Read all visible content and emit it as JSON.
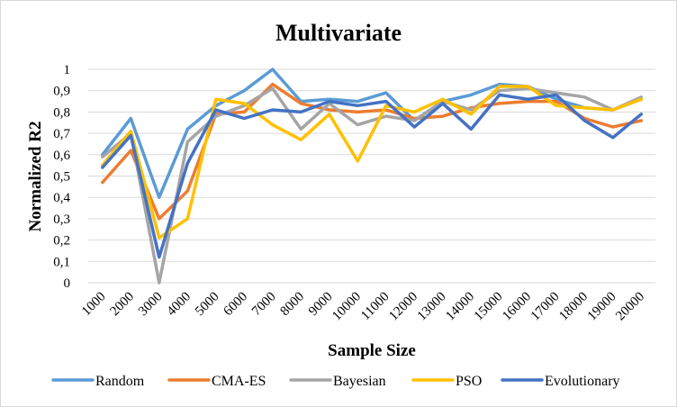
{
  "chart_data": {
    "type": "line",
    "title": "Multivariate",
    "xlabel": "Sample Size",
    "ylabel": "Normalized R2",
    "ylim": [
      0,
      1
    ],
    "yticks": [
      "0",
      "0,1",
      "0,2",
      "0,3",
      "0,4",
      "0,5",
      "0,6",
      "0,7",
      "0,8",
      "0,9",
      "1"
    ],
    "categories": [
      "1000",
      "2000",
      "3000",
      "4000",
      "5000",
      "6000",
      "7000",
      "8000",
      "9000",
      "10000",
      "11000",
      "12000",
      "13000",
      "14000",
      "15000",
      "16000",
      "17000",
      "18000",
      "19000",
      "20000"
    ],
    "grid": true,
    "legend_position": "bottom",
    "series": [
      {
        "name": "Random",
        "color": "#5B9BD5",
        "values": [
          0.6,
          0.77,
          0.4,
          0.72,
          0.83,
          0.9,
          1.0,
          0.85,
          0.86,
          0.85,
          0.89,
          0.76,
          0.85,
          0.88,
          0.93,
          0.92,
          0.86,
          0.82,
          0.81,
          0.86
        ]
      },
      {
        "name": "CMA-ES",
        "color": "#ED7D31",
        "values": [
          0.47,
          0.62,
          0.3,
          0.43,
          0.79,
          0.8,
          0.93,
          0.84,
          0.81,
          0.8,
          0.81,
          0.77,
          0.78,
          0.82,
          0.84,
          0.85,
          0.85,
          0.77,
          0.73,
          0.76
        ]
      },
      {
        "name": "Bayesian",
        "color": "#A5A5A5",
        "values": [
          0.59,
          0.7,
          0.0,
          0.66,
          0.78,
          0.83,
          0.91,
          0.72,
          0.84,
          0.74,
          0.78,
          0.76,
          0.85,
          0.81,
          0.9,
          0.91,
          0.89,
          0.87,
          0.81,
          0.87
        ]
      },
      {
        "name": "PSO",
        "color": "#FFC000",
        "values": [
          0.55,
          0.71,
          0.21,
          0.3,
          0.86,
          0.84,
          0.74,
          0.67,
          0.79,
          0.57,
          0.83,
          0.8,
          0.86,
          0.79,
          0.92,
          0.92,
          0.83,
          0.82,
          0.81,
          0.86
        ]
      },
      {
        "name": "Evolutionary",
        "color": "#4472C4",
        "values": [
          0.54,
          0.69,
          0.12,
          0.56,
          0.81,
          0.77,
          0.81,
          0.8,
          0.85,
          0.83,
          0.85,
          0.73,
          0.84,
          0.72,
          0.88,
          0.86,
          0.88,
          0.76,
          0.68,
          0.79
        ]
      }
    ]
  }
}
